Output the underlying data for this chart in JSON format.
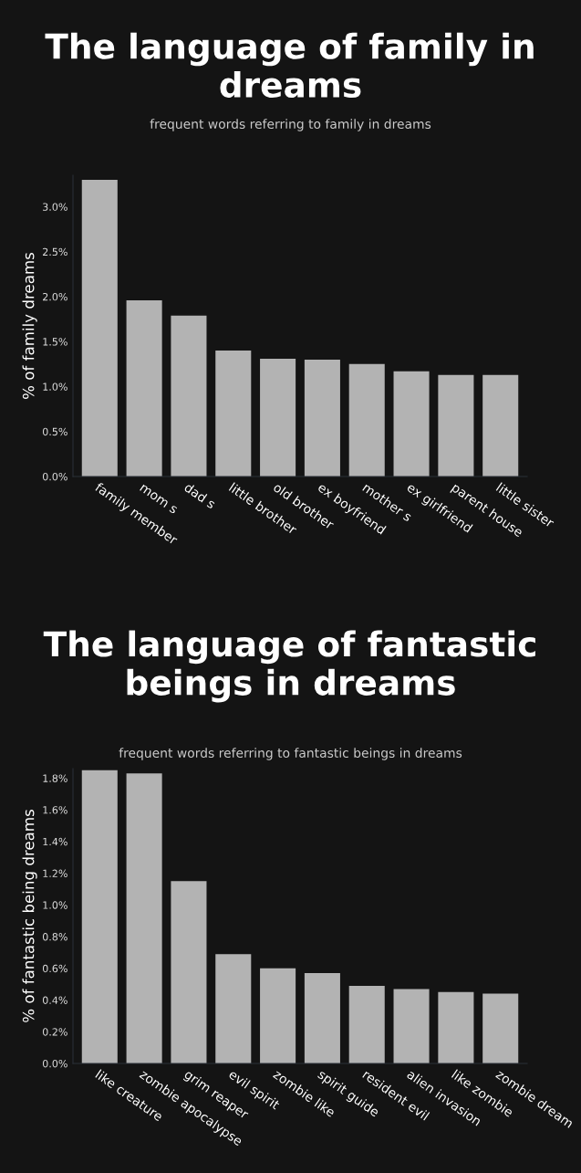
{
  "chart_data": [
    {
      "type": "bar",
      "title": "The language of family in dreams",
      "subtitle": "frequent words referring to family in dreams",
      "ylabel": "% of family dreams",
      "categories": [
        "family member",
        "mom s",
        "dad s",
        "little brother",
        "old brother",
        "ex boyfriend",
        "mother s",
        "ex girlfriend",
        "parent house",
        "little sister"
      ],
      "values": [
        3.3,
        1.96,
        1.79,
        1.4,
        1.31,
        1.3,
        1.25,
        1.17,
        1.13,
        1.13
      ],
      "color": "#b3b3b3",
      "ylim": [
        0,
        3.35
      ],
      "yticks": [
        {
          "value": 0,
          "label": "0.0%"
        },
        {
          "value": 0.5,
          "label": "0.5%"
        },
        {
          "value": 1.0,
          "label": "1.0%"
        },
        {
          "value": 1.5,
          "label": "1.5%"
        },
        {
          "value": 2.0,
          "label": "2.0%"
        },
        {
          "value": 2.5,
          "label": "2.5%"
        },
        {
          "value": 3.0,
          "label": "3.0%"
        }
      ],
      "grid": false,
      "legend": false
    },
    {
      "type": "bar",
      "title": "The language of fantastic beings in dreams",
      "subtitle": "frequent words referring to fantastic beings in dreams",
      "ylabel": "% of fantastic being dreams",
      "categories": [
        "like creature",
        "zombie apocalypse",
        "grim reaper",
        "evil spirit",
        "zombie like",
        "spirit guide",
        "resident evil",
        "alien invasion",
        "like zombie",
        "zombie dream"
      ],
      "values": [
        1.85,
        1.83,
        1.15,
        0.69,
        0.6,
        0.57,
        0.49,
        0.47,
        0.45,
        0.44
      ],
      "color": "#b3b3b3",
      "ylim": [
        0,
        1.86
      ],
      "yticks": [
        {
          "value": 0,
          "label": "0.0%"
        },
        {
          "value": 0.2,
          "label": "0.2%"
        },
        {
          "value": 0.4,
          "label": "0.4%"
        },
        {
          "value": 0.6,
          "label": "0.6%"
        },
        {
          "value": 0.8,
          "label": "0.8%"
        },
        {
          "value": 1.0,
          "label": "1.0%"
        },
        {
          "value": 1.2,
          "label": "1.2%"
        },
        {
          "value": 1.4,
          "label": "1.4%"
        },
        {
          "value": 1.6,
          "label": "1.6%"
        },
        {
          "value": 1.8,
          "label": "1.8%"
        }
      ],
      "grid": false,
      "legend": false
    }
  ]
}
